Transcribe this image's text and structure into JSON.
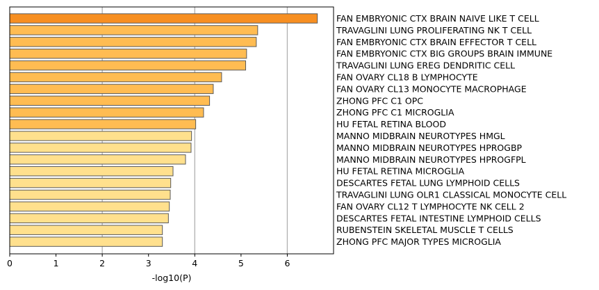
{
  "chart_data": {
    "type": "bar",
    "orientation": "horizontal",
    "title": "",
    "xlabel": "-log10(P)",
    "ylabel": "",
    "xlim": [
      0,
      7
    ],
    "xticks": [
      "0",
      "1",
      "2",
      "3",
      "4",
      "5",
      "6"
    ],
    "grid": "vertical gridlines at 2, 4, 6",
    "legend": "none",
    "categories": [
      "FAN EMBRYONIC CTX BRAIN NAIVE LIKE T CELL",
      "TRAVAGLINI LUNG PROLIFERATING NK T CELL",
      "FAN EMBRYONIC CTX BRAIN EFFECTOR T CELL",
      "FAN EMBRYONIC CTX BIG GROUPS BRAIN IMMUNE",
      "TRAVAGLINI LUNG EREG DENDRITIC CELL",
      "FAN OVARY CL18 B LYMPHOCYTE",
      "FAN OVARY CL13 MONOCYTE MACROPHAGE",
      "ZHONG PFC C1 OPC",
      "ZHONG PFC C1 MICROGLIA",
      "HU FETAL RETINA BLOOD",
      "MANNO MIDBRAIN NEUROTYPES HMGL",
      "MANNO MIDBRAIN NEUROTYPES HPROGBP",
      "MANNO MIDBRAIN NEUROTYPES HPROGFPL",
      "HU FETAL RETINA MICROGLIA",
      "DESCARTES FETAL LUNG LYMPHOID CELLS",
      "TRAVAGLINI LUNG OLR1 CLASSICAL MONOCYTE CELL",
      "FAN OVARY CL12 T LYMPHOCYTE NK CELL 2",
      "DESCARTES FETAL INTESTINE LYMPHOID CELLS",
      "RUBENSTEIN SKELETAL MUSCLE T CELLS",
      "ZHONG PFC MAJOR TYPES MICROGLIA"
    ],
    "values": [
      6.65,
      5.36,
      5.33,
      5.12,
      5.1,
      4.58,
      4.4,
      4.32,
      4.19,
      4.02,
      3.93,
      3.92,
      3.8,
      3.53,
      3.48,
      3.47,
      3.45,
      3.43,
      3.3,
      3.3
    ],
    "colors": [
      "#f78f22",
      "#ffbc52",
      "#ffbc52",
      "#ffbc52",
      "#ffbc52",
      "#ffbc52",
      "#ffbc52",
      "#ffbc52",
      "#ffbc52",
      "#ffbc52",
      "#ffe08d",
      "#ffe08d",
      "#ffe08d",
      "#ffe08d",
      "#ffe08d",
      "#ffe08d",
      "#ffe08d",
      "#ffe08d",
      "#ffe08d",
      "#ffe08d"
    ],
    "bar_edge_color": "#5a5a5a",
    "grid_color": "#b0b0b0"
  }
}
